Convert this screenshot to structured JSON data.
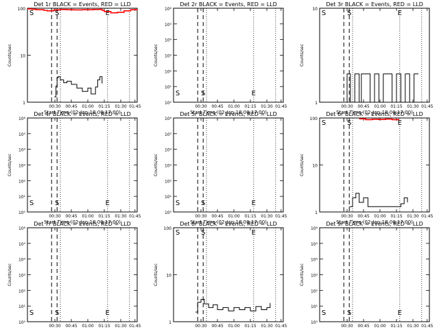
{
  "chart_data": [
    {
      "type": "line",
      "title": "Det 1r BLACK = Events, RED = LLD",
      "xlabel": "Start Time (02-Jan-18 00:17:00)",
      "ylabel": "Counts/sec",
      "y_scale": "log",
      "ylim": [
        1,
        100
      ],
      "ytick_labels": [
        "1",
        "10",
        "100"
      ],
      "xtick_labels": [
        "00:30",
        "00:45",
        "01:00",
        "01:15",
        "01:30",
        "01:45"
      ],
      "markers": [
        "S",
        "E"
      ],
      "series": [
        {
          "color": "#000000",
          "x": [
            0.245,
            0.26,
            0.27,
            0.28,
            0.3,
            0.33,
            0.36,
            0.4,
            0.45,
            0.5,
            0.55,
            0.58,
            0.62,
            0.64,
            0.66,
            0.68
          ],
          "y": [
            1.3,
            2.2,
            3.3,
            3.5,
            3.0,
            2.6,
            2.8,
            2.4,
            2.0,
            1.7,
            2.0,
            1.5,
            2.1,
            3.0,
            3.5,
            2.5
          ]
        },
        {
          "color": "#ff0000",
          "x": [
            0.0,
            0.04,
            0.08,
            0.15,
            0.18,
            0.24,
            0.3,
            0.36,
            0.42,
            0.5,
            0.6,
            0.66,
            0.68,
            0.7,
            0.76,
            0.82,
            0.88,
            0.94,
            1.0
          ],
          "y": [
            97,
            95,
            93,
            90,
            88,
            92,
            94,
            93,
            92,
            93,
            94,
            95,
            90,
            85,
            80,
            82,
            88,
            93,
            95
          ]
        }
      ]
    },
    {
      "type": "line",
      "title": "Det 2r BLACK = Events, RED = LLD",
      "xlabel": "Start Time (02-Jan-18 00:17:00)",
      "ylabel": "Counts/sec",
      "y_scale": "log",
      "ylim": [
        1,
        1000000
      ],
      "ytick_labels": [
        "10⁰",
        "10¹",
        "10²",
        "10³",
        "10⁴",
        "10⁵",
        "10⁶"
      ],
      "xtick_labels": [
        "00:30",
        "00:45",
        "01:00",
        "01:15",
        "01:30",
        "01:45"
      ],
      "markers": [
        "S",
        "E"
      ],
      "series": []
    },
    {
      "type": "line",
      "title": "Det 3r BLACK = Events, RED = LLD",
      "xlabel": "Start Time (02-Jan-18 00:17:00)",
      "ylabel": "Counts/sec",
      "y_scale": "log",
      "ylim": [
        1,
        10
      ],
      "ytick_labels": [
        "1",
        "10"
      ],
      "xtick_labels": [
        "00:30",
        "00:45",
        "01:00",
        "01:15",
        "01:30",
        "01:45"
      ],
      "markers": [
        "S",
        "E"
      ],
      "series": [
        {
          "color": "#000000",
          "x": [
            0.22,
            0.25,
            0.28,
            0.32,
            0.36,
            0.38,
            0.42,
            0.46,
            0.5,
            0.54,
            0.58,
            0.62,
            0.66,
            0.7,
            0.74,
            0.78,
            0.82,
            0.86,
            0.9
          ],
          "y": [
            1,
            2,
            1,
            2,
            1,
            2,
            2,
            1,
            2,
            1,
            2,
            2,
            1,
            2,
            1,
            2,
            1,
            2,
            2
          ]
        }
      ]
    },
    {
      "type": "line",
      "title": "Det 4r BLACK = Events, RED = LLD",
      "xlabel": "Start Time (02-Jan-18 00:17:00)",
      "ylabel": "Counts/sec",
      "y_scale": "log",
      "ylim": [
        1,
        1000000
      ],
      "ytick_labels": [
        "10⁰",
        "10¹",
        "10²",
        "10³",
        "10⁴",
        "10⁵",
        "10⁶"
      ],
      "xtick_labels": [
        "00:30",
        "00:45",
        "01:00",
        "01:15",
        "01:30",
        "01:45"
      ],
      "markers": [
        "S",
        "E"
      ],
      "series": []
    },
    {
      "type": "line",
      "title": "Det 5r BLACK = Events, RED = LLD",
      "xlabel": "Start Time (02-Jan-18 00:17:00)",
      "ylabel": "Counts/sec",
      "y_scale": "log",
      "ylim": [
        1,
        1000000
      ],
      "ytick_labels": [
        "10⁰",
        "10¹",
        "10²",
        "10³",
        "10⁴",
        "10⁵",
        "10⁶"
      ],
      "xtick_labels": [
        "00:30",
        "00:45",
        "01:00",
        "01:15",
        "01:30",
        "01:45"
      ],
      "markers": [
        "S",
        "E"
      ],
      "series": []
    },
    {
      "type": "line",
      "title": "Det 6r BLACK = Events, RED = LLD",
      "xlabel": "Start Time (02-Jan-18 00:17:00)",
      "ylabel": "Counts/sec",
      "y_scale": "log",
      "ylim": [
        1,
        100
      ],
      "ytick_labels": [
        "1",
        "10",
        "100"
      ],
      "xtick_labels": [
        "00:30",
        "00:45",
        "01:00",
        "01:15",
        "01:30",
        "01:45"
      ],
      "markers": [
        "S",
        "E"
      ],
      "series": [
        {
          "color": "#000000",
          "x": [
            0.27,
            0.3,
            0.33,
            0.36,
            0.4,
            0.44,
            0.74,
            0.77,
            0.8
          ],
          "y": [
            1.3,
            2.0,
            2.5,
            1.6,
            2.0,
            1.3,
            1.5,
            2.0,
            1.6
          ]
        },
        {
          "color": "#ff0000",
          "x": [
            0.36,
            0.42,
            0.48,
            0.54,
            0.6,
            0.66,
            0.72
          ],
          "y": [
            96,
            92,
            94,
            93,
            95,
            92,
            96
          ]
        }
      ]
    },
    {
      "type": "line",
      "title": "Det 7r BLACK = Events, RED = LLD",
      "xlabel": "Start Time (02-Jan-18 00:17:00)",
      "ylabel": "Counts/sec",
      "y_scale": "log",
      "ylim": [
        1,
        1000000
      ],
      "ytick_labels": [
        "10⁰",
        "10¹",
        "10²",
        "10³",
        "10⁴",
        "10⁵",
        "10⁶"
      ],
      "xtick_labels": [
        "00:30",
        "00:45",
        "01:00",
        "01:15",
        "01:30",
        "01:45"
      ],
      "markers": [
        "S",
        "E"
      ],
      "series": []
    },
    {
      "type": "line",
      "title": "Det 8r BLACK = Events, RED = LLD",
      "xlabel": "Start Time (02-Jan-18 00:17:00)",
      "ylabel": "Counts/sec",
      "y_scale": "log",
      "ylim": [
        1,
        100
      ],
      "ytick_labels": [
        "1",
        "10",
        "100"
      ],
      "xtick_labels": [
        "00:30",
        "00:45",
        "01:00",
        "01:15",
        "01:30",
        "01:45"
      ],
      "markers": [
        "S",
        "E"
      ],
      "series": [
        {
          "color": "#000000",
          "x": [
            0.2,
            0.22,
            0.25,
            0.28,
            0.32,
            0.36,
            0.4,
            0.45,
            0.5,
            0.55,
            0.6,
            0.65,
            0.7,
            0.75,
            0.8,
            0.85,
            0.88
          ],
          "y": [
            1.6,
            2.6,
            3.0,
            2.4,
            2.0,
            2.3,
            1.8,
            2.0,
            1.7,
            2.0,
            1.8,
            2.0,
            1.7,
            2.1,
            1.8,
            2.0,
            2.5
          ]
        }
      ]
    },
    {
      "type": "line",
      "title": "Det 9r BLACK = Events, RED = LLD",
      "xlabel": "Start Time (02-Jan-18 00:17:00)",
      "ylabel": "Counts/sec",
      "y_scale": "log",
      "ylim": [
        1,
        1000000
      ],
      "ytick_labels": [
        "10⁰",
        "10¹",
        "10²",
        "10³",
        "10⁴",
        "10⁵",
        "10⁶"
      ],
      "xtick_labels": [
        "00:30",
        "00:45",
        "01:00",
        "01:15",
        "01:30",
        "01:45"
      ],
      "markers": [
        "S",
        "E"
      ],
      "series": []
    }
  ]
}
